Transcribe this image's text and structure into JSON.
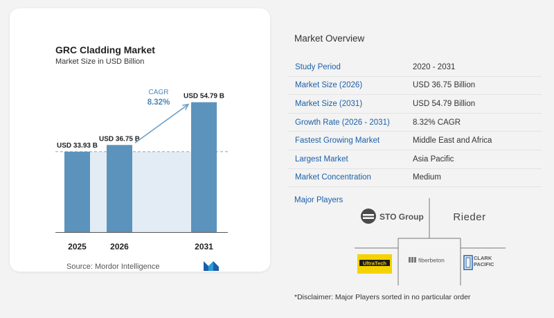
{
  "chart": {
    "title": "GRC Cladding Market",
    "subtitle": "Market Size in USD Billion",
    "source": "Source:  Mordor Intelligence",
    "cagr_label": "CAGR",
    "cagr_value": "8.32%"
  },
  "chart_data": {
    "type": "bar",
    "categories": [
      "2025",
      "2026",
      "2031"
    ],
    "values": [
      33.93,
      36.75,
      54.79
    ],
    "data_labels": [
      "USD 33.93 B",
      "USD 36.75 B",
      "USD 54.79 B"
    ],
    "title": "GRC Cladding Market",
    "subtitle": "Market Size in USD Billion",
    "xlabel": "",
    "ylabel": "",
    "ylim": [
      0,
      57
    ],
    "grid": false,
    "colors": {
      "bar": "#5b93bd",
      "band": "#e3ecf4",
      "arrow": "#6d9ec6",
      "cagr": "#4f86b3"
    }
  },
  "overview": {
    "title": "Market Overview",
    "rows": [
      {
        "label": "Study Period",
        "value": "2020 - 2031"
      },
      {
        "label": "Market Size (2026)",
        "value": "USD 36.75 Billion"
      },
      {
        "label": "Market Size (2031)",
        "value": "USD 54.79 Billion"
      },
      {
        "label": "Growth Rate (2026 - 2031)",
        "value": "8.32% CAGR"
      },
      {
        "label": "Fastest Growing Market",
        "value": "Middle East and Africa"
      },
      {
        "label": "Largest Market",
        "value": "Asia Pacific"
      },
      {
        "label": "Market Concentration",
        "value": "Medium"
      }
    ]
  },
  "players": {
    "label": "Major Players",
    "logos": [
      "STO Group",
      "Rieder",
      "UltraTech",
      "fiberbeton",
      "CLARK PACIFIC"
    ]
  },
  "disclaimer": "*Disclaimer: Major Players sorted in no particular order"
}
